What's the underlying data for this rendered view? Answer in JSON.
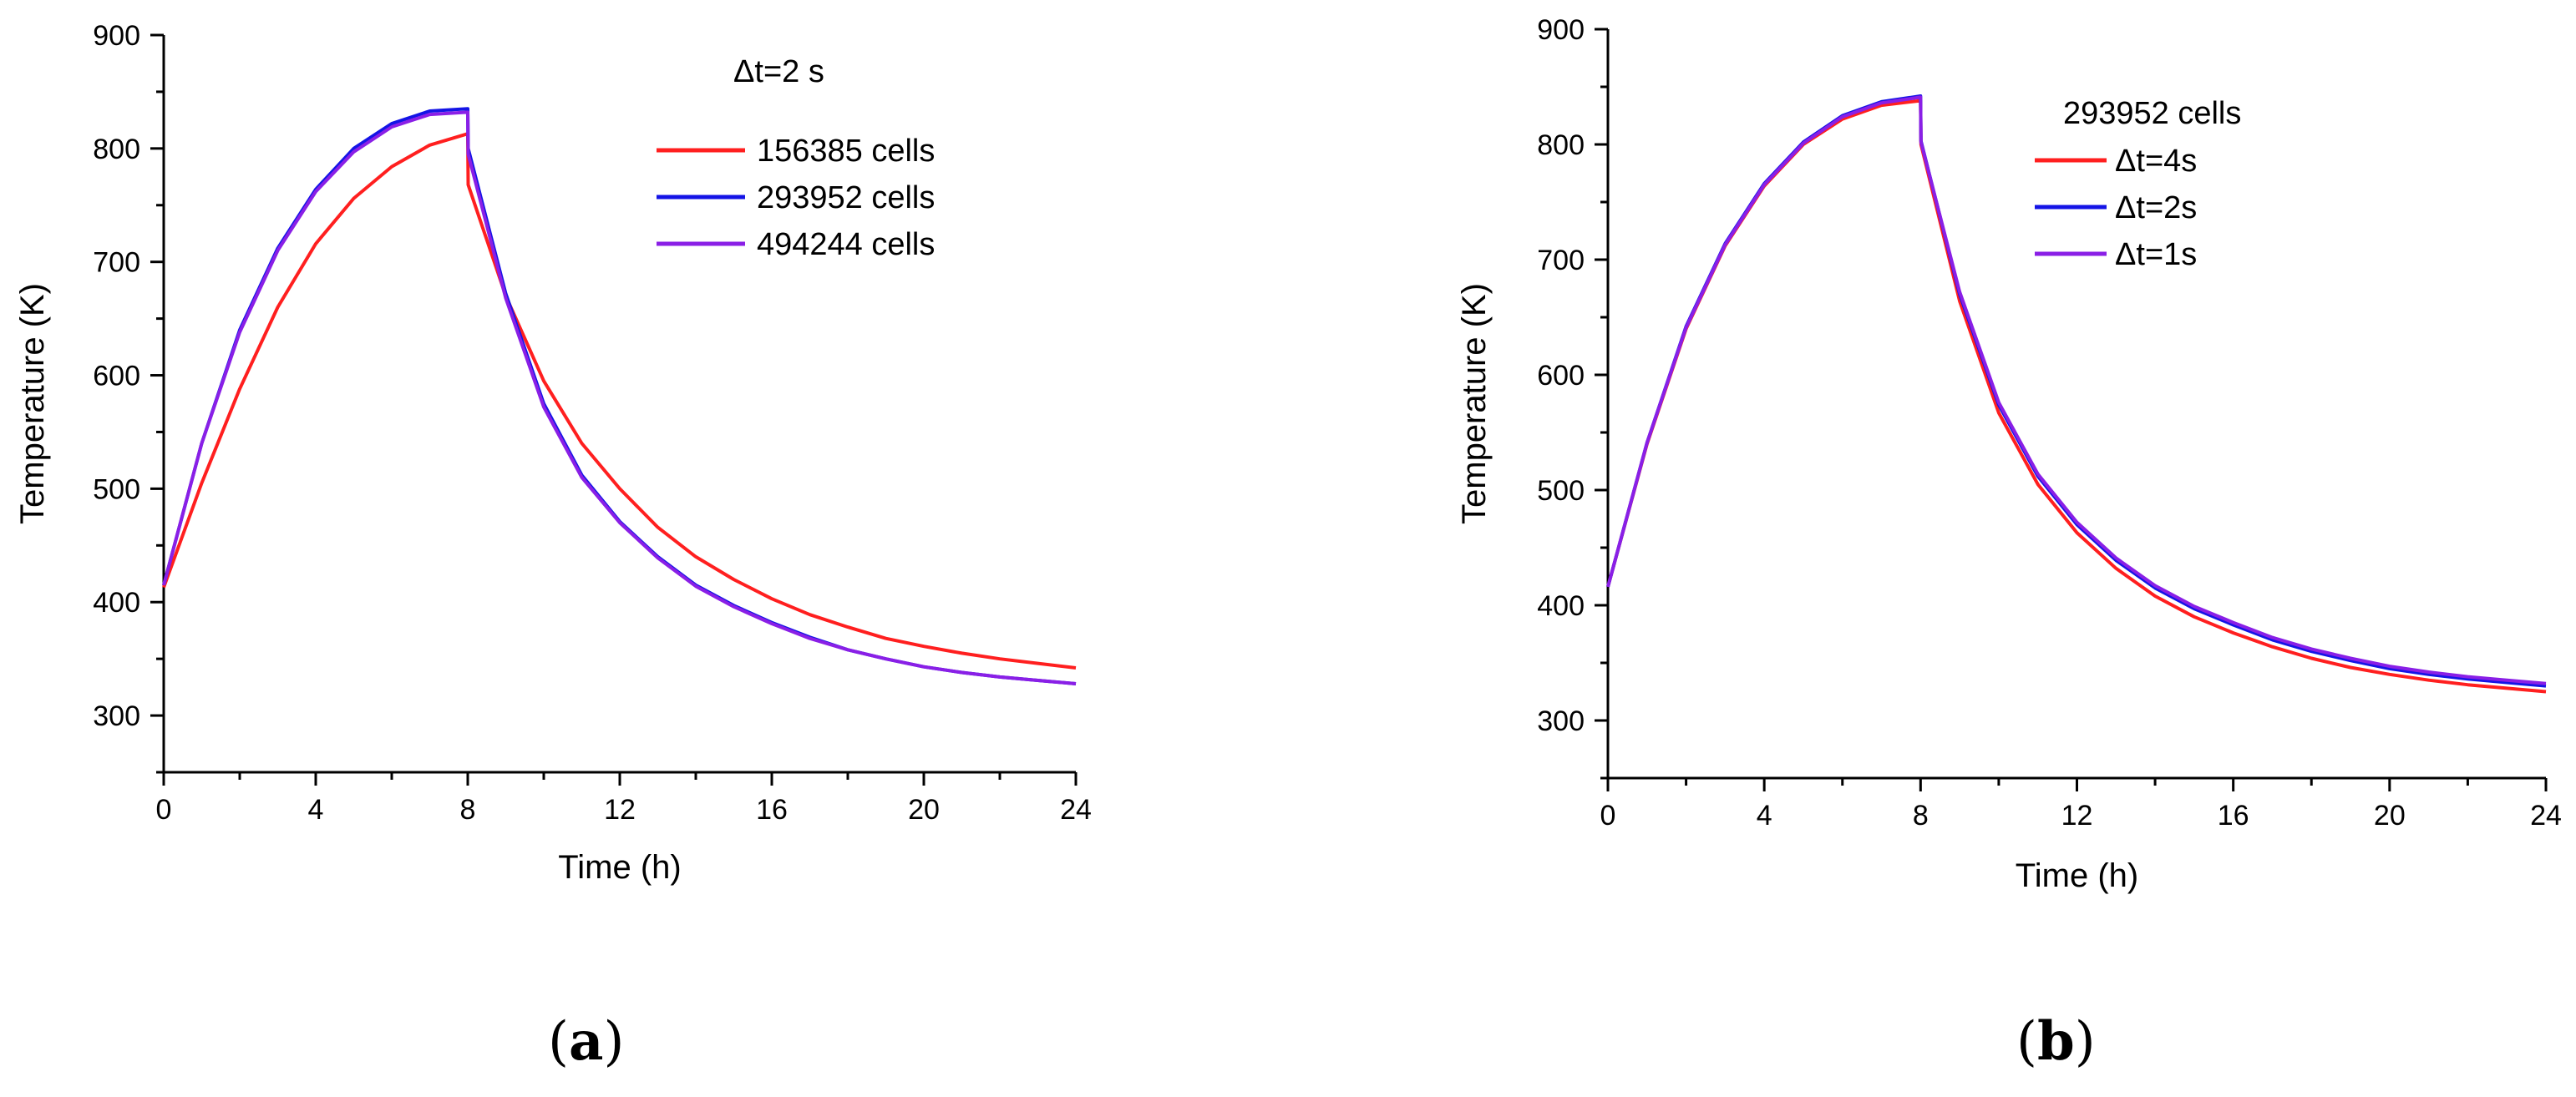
{
  "colors": {
    "red": "#ff1f1f",
    "blue": "#1414e6",
    "purple": "#8a1fe6",
    "axis": "#000000"
  },
  "panels": [
    {
      "label": "a",
      "chart_data": {
        "type": "line",
        "title": "",
        "xlabel": "Time (h)",
        "ylabel": "Temperature (K)",
        "xlim": [
          0,
          24
        ],
        "ylim": [
          250,
          900
        ],
        "xticks": [
          "0",
          "4",
          "8",
          "12",
          "16",
          "20",
          "24"
        ],
        "yticks": [
          "300",
          "400",
          "500",
          "600",
          "700",
          "800",
          "900"
        ],
        "legend_title": "Δt=2 s",
        "legend_position": "top-right",
        "series": [
          {
            "name": "156385 cells",
            "color": "#ff1f1f",
            "x": [
              0,
              1,
              2,
              3,
              4,
              5,
              6,
              7,
              8,
              8.01,
              9,
              10,
              11,
              12,
              13,
              14,
              15,
              16,
              17,
              18,
              19,
              20,
              21,
              22,
              23,
              24
            ],
            "y": [
              413,
              505,
              588,
              660,
              716,
              756,
              784,
              803,
              813,
              768,
              670,
              595,
              540,
              500,
              466,
              440,
              420,
              403,
              389,
              378,
              368,
              361,
              355,
              350,
              346,
              342
            ]
          },
          {
            "name": "293952 cells",
            "color": "#1414e6",
            "x": [
              0,
              1,
              2,
              3,
              4,
              5,
              6,
              7,
              8,
              8.01,
              9,
              10,
              11,
              12,
              13,
              14,
              15,
              16,
              17,
              18,
              19,
              20,
              21,
              22,
              23,
              24
            ],
            "y": [
              415,
              540,
              640,
              712,
              764,
              800,
              822,
              833,
              835,
              800,
              672,
              575,
              512,
              471,
              440,
              415,
              397,
              382,
              369,
              358,
              350,
              343,
              338,
              334,
              331,
              328
            ]
          },
          {
            "name": "494244 cells",
            "color": "#8a1fe6",
            "x": [
              0,
              1,
              2,
              3,
              4,
              5,
              6,
              7,
              8,
              8.01,
              9,
              10,
              11,
              12,
              13,
              14,
              15,
              16,
              17,
              18,
              19,
              20,
              21,
              22,
              23,
              24
            ],
            "y": [
              415,
              540,
              638,
              710,
              762,
              797,
              819,
              830,
              832,
              795,
              668,
              572,
              510,
              470,
              439,
              414,
              396,
              381,
              368,
              358,
              350,
              343,
              338,
              334,
              331,
              328
            ]
          }
        ]
      }
    },
    {
      "label": "b",
      "chart_data": {
        "type": "line",
        "title": "",
        "xlabel": "Time (h)",
        "ylabel": "Temperature (K)",
        "xlim": [
          0,
          24
        ],
        "ylim": [
          250,
          900
        ],
        "xticks": [
          "0",
          "4",
          "8",
          "12",
          "16",
          "20",
          "24"
        ],
        "yticks": [
          "300",
          "400",
          "500",
          "600",
          "700",
          "800",
          "900"
        ],
        "legend_title": "293952 cells",
        "legend_position": "top-right",
        "series": [
          {
            "name": "Δt=4s",
            "color": "#ff1f1f",
            "x": [
              0,
              1,
              2,
              3,
              4,
              5,
              6,
              7,
              8,
              8.01,
              9,
              10,
              11,
              12,
              13,
              14,
              15,
              16,
              17,
              18,
              19,
              20,
              21,
              22,
              23,
              24
            ],
            "y": [
              416,
              540,
              640,
              712,
              764,
              800,
              822,
              834,
              838,
              800,
              664,
              567,
              505,
              463,
              432,
              408,
              390,
              376,
              364,
              354,
              346,
              340,
              335,
              331,
              328,
              325
            ]
          },
          {
            "name": "Δt=2s",
            "color": "#1414e6",
            "x": [
              0,
              1,
              2,
              3,
              4,
              5,
              6,
              7,
              8,
              8.01,
              9,
              10,
              11,
              12,
              13,
              14,
              15,
              16,
              17,
              18,
              19,
              20,
              21,
              22,
              23,
              24
            ],
            "y": [
              416,
              541,
              642,
              714,
              766,
              802,
              825,
              837,
              842,
              803,
              670,
              574,
              512,
              470,
              439,
              415,
              397,
              383,
              370,
              360,
              352,
              345,
              340,
              336,
              333,
              330
            ]
          },
          {
            "name": "Δt=1s",
            "color": "#8a1fe6",
            "x": [
              0,
              1,
              2,
              3,
              4,
              5,
              6,
              7,
              8,
              8.01,
              9,
              10,
              11,
              12,
              13,
              14,
              15,
              16,
              17,
              18,
              19,
              20,
              21,
              22,
              23,
              24
            ],
            "y": [
              416,
              541,
              641,
              713,
              765,
              801,
              824,
              836,
              841,
              802,
              672,
              576,
              514,
              472,
              441,
              417,
              399,
              385,
              372,
              362,
              354,
              347,
              342,
              338,
              335,
              332
            ]
          }
        ]
      }
    }
  ]
}
